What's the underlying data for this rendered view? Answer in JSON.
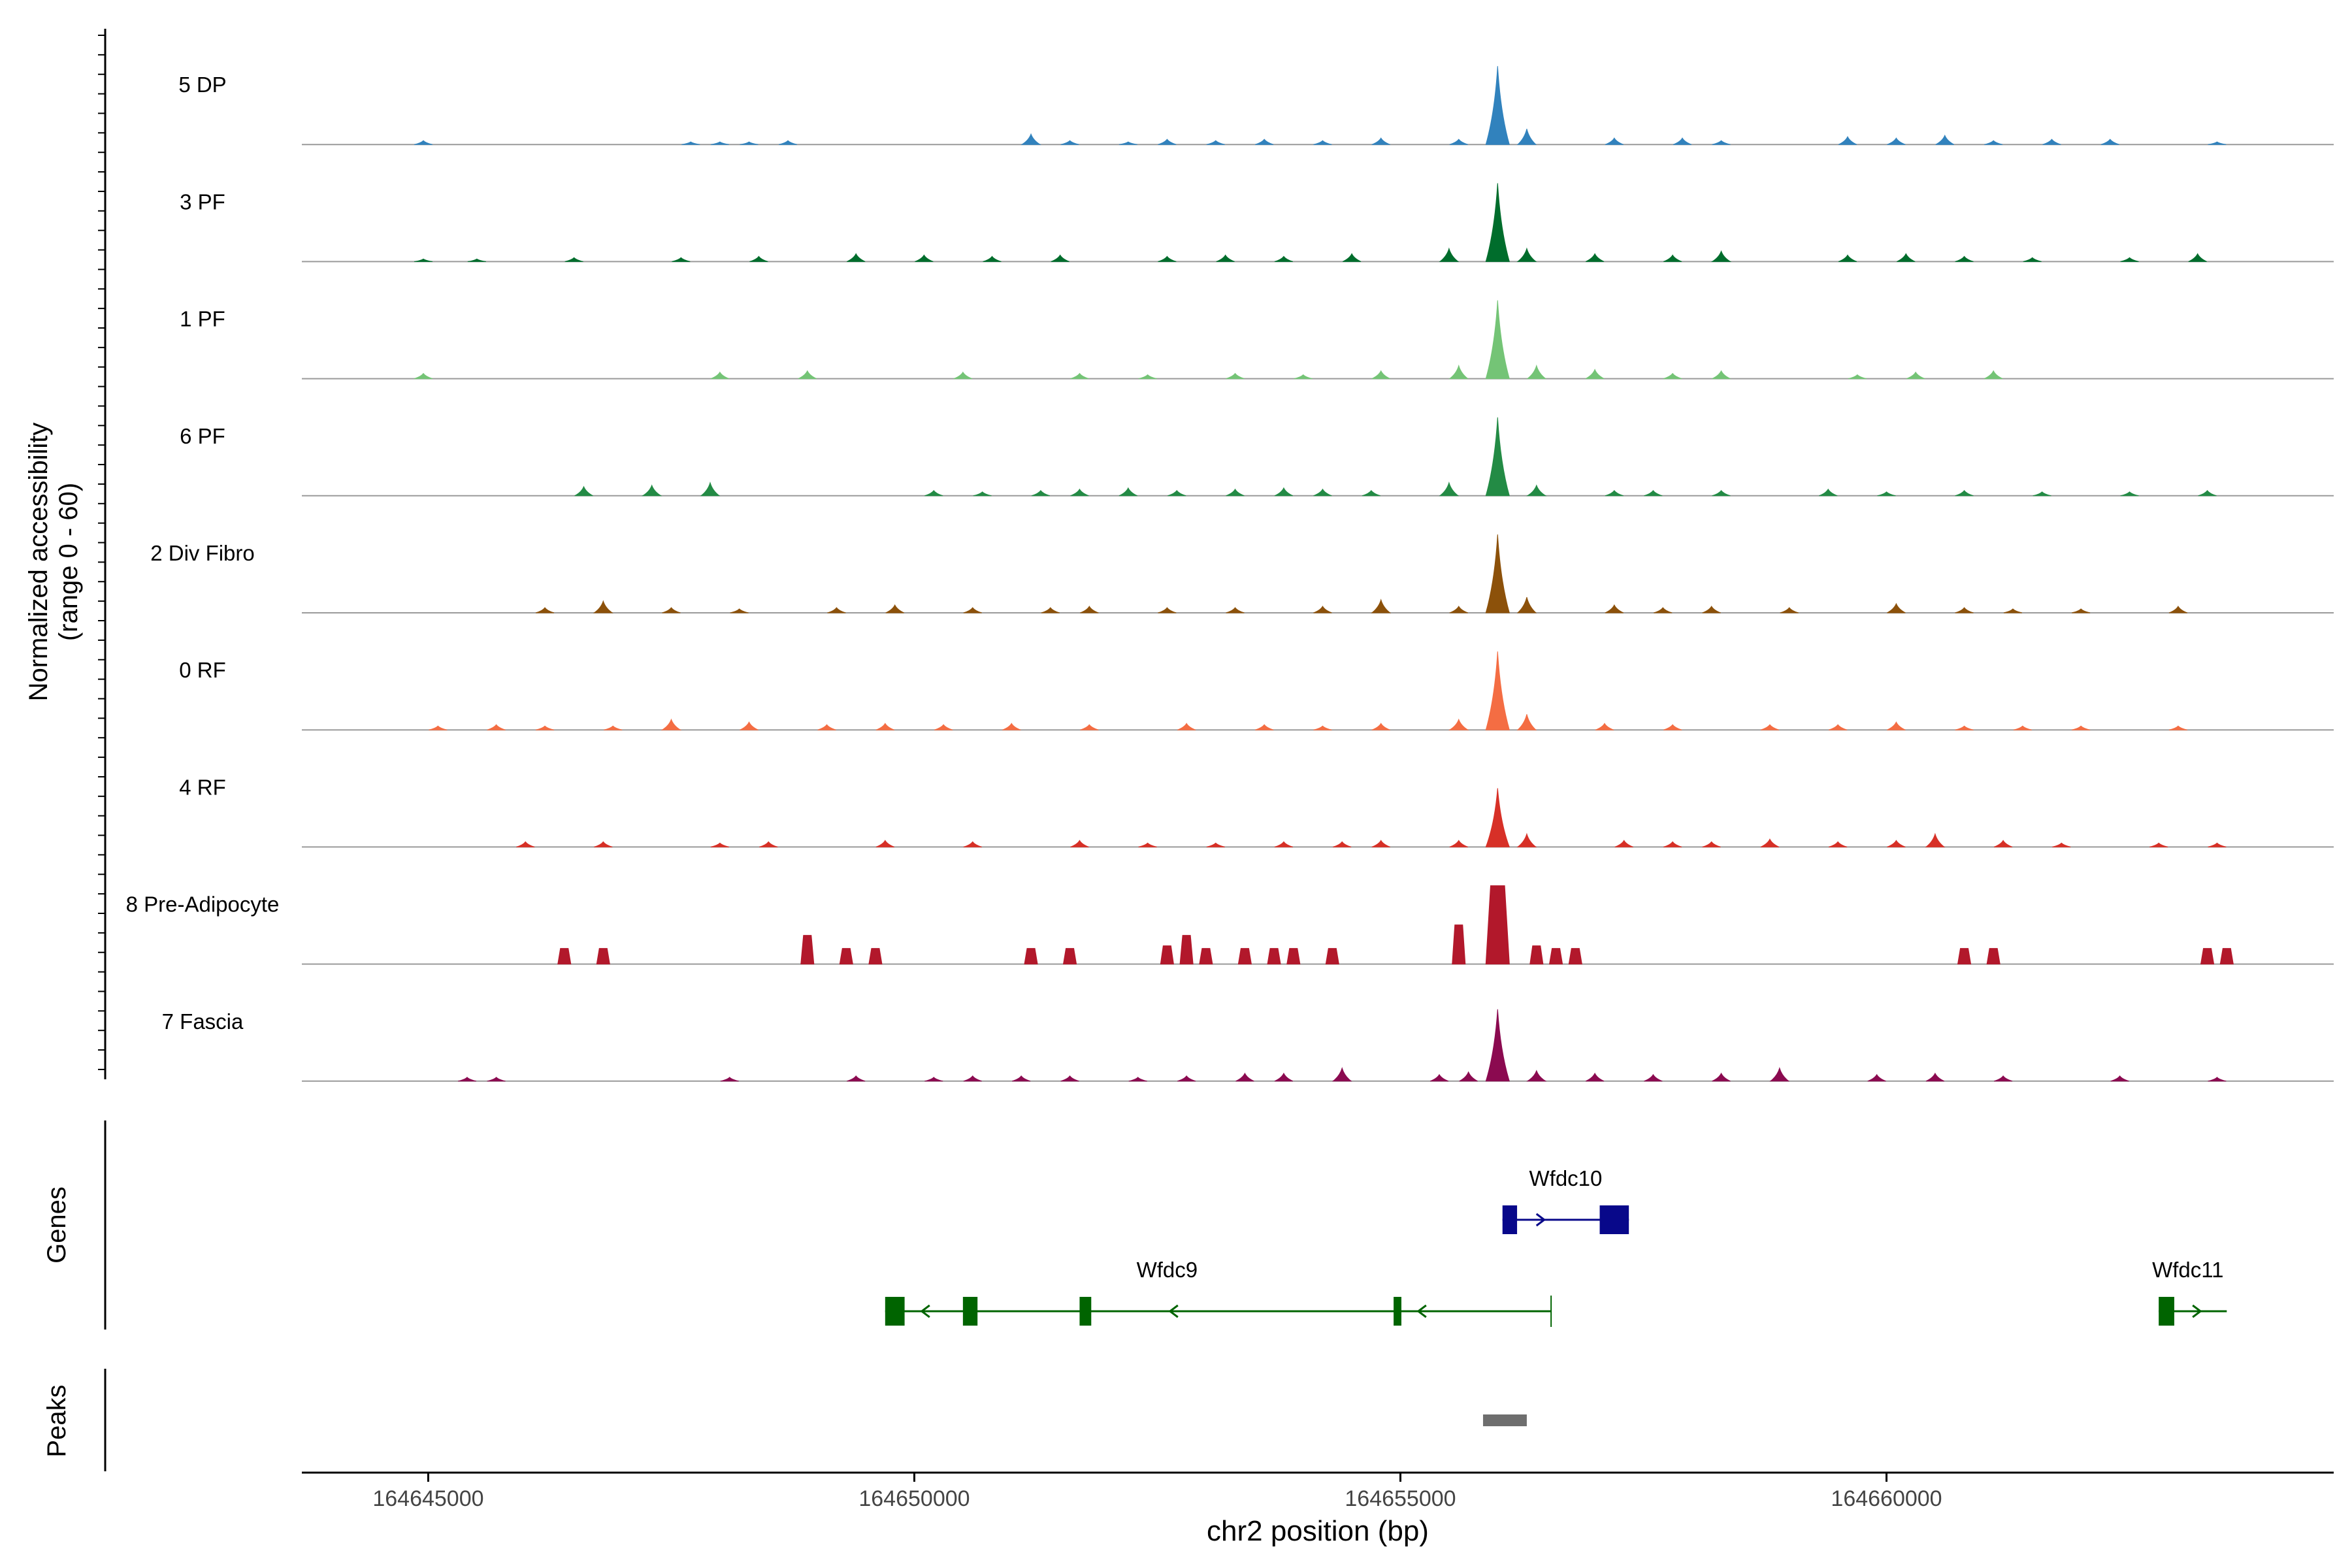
{
  "chart_data": {
    "type": "area",
    "title": "",
    "ylabel": [
      "Normalized accessibility",
      "(range 0 - 60)"
    ],
    "xlabel": "chr2 position (bp)",
    "xlim": [
      164643700,
      164664600
    ],
    "ylim": [
      0,
      60
    ],
    "xticks": [
      164645000,
      164650000,
      164655000,
      164660000
    ],
    "xtick_labels": [
      "164645000",
      "164650000",
      "164655000",
      "164660000"
    ],
    "series": [
      {
        "name": "5 DP",
        "color": "#3182BD",
        "peaks": [
          [
            164644950,
            3
          ],
          [
            164647700,
            2
          ],
          [
            164648000,
            2
          ],
          [
            164648300,
            2
          ],
          [
            164648700,
            3
          ],
          [
            164651200,
            8
          ],
          [
            164651600,
            3
          ],
          [
            164652200,
            2
          ],
          [
            164652600,
            4
          ],
          [
            164653100,
            3
          ],
          [
            164653600,
            4
          ],
          [
            164654200,
            3
          ],
          [
            164654800,
            5
          ],
          [
            164655600,
            4
          ],
          [
            164656000,
            60
          ],
          [
            164656300,
            12
          ],
          [
            164657200,
            5
          ],
          [
            164657900,
            5
          ],
          [
            164658300,
            3
          ],
          [
            164659600,
            6
          ],
          [
            164660100,
            5
          ],
          [
            164660600,
            7
          ],
          [
            164661100,
            3
          ],
          [
            164661700,
            4
          ],
          [
            164662300,
            4
          ],
          [
            164663400,
            2
          ]
        ]
      },
      {
        "name": "3 PF",
        "color": "#006D2C",
        "peaks": [
          [
            164644950,
            2
          ],
          [
            164645500,
            2
          ],
          [
            164646500,
            3
          ],
          [
            164647600,
            3
          ],
          [
            164648400,
            4
          ],
          [
            164649400,
            6
          ],
          [
            164650100,
            5
          ],
          [
            164650800,
            4
          ],
          [
            164651500,
            5
          ],
          [
            164652600,
            4
          ],
          [
            164653200,
            5
          ],
          [
            164653800,
            4
          ],
          [
            164654500,
            6
          ],
          [
            164655500,
            10
          ],
          [
            164656000,
            60
          ],
          [
            164656300,
            10
          ],
          [
            164657000,
            6
          ],
          [
            164657800,
            5
          ],
          [
            164658300,
            8
          ],
          [
            164659600,
            5
          ],
          [
            164660200,
            6
          ],
          [
            164660800,
            4
          ],
          [
            164661500,
            3
          ],
          [
            164662500,
            3
          ],
          [
            164663200,
            6
          ]
        ]
      },
      {
        "name": "1 PF",
        "color": "#74C476",
        "peaks": [
          [
            164644950,
            4
          ],
          [
            164648000,
            5
          ],
          [
            164648900,
            6
          ],
          [
            164650500,
            5
          ],
          [
            164651700,
            4
          ],
          [
            164652400,
            3
          ],
          [
            164653300,
            4
          ],
          [
            164654000,
            3
          ],
          [
            164654800,
            6
          ],
          [
            164655600,
            10
          ],
          [
            164656000,
            60
          ],
          [
            164656400,
            10
          ],
          [
            164657000,
            7
          ],
          [
            164657800,
            4
          ],
          [
            164658300,
            6
          ],
          [
            164659700,
            3
          ],
          [
            164660300,
            5
          ],
          [
            164661100,
            6
          ]
        ]
      },
      {
        "name": "6 PF",
        "color": "#238B45",
        "peaks": [
          [
            164646600,
            7
          ],
          [
            164647300,
            8
          ],
          [
            164647900,
            10
          ],
          [
            164650200,
            4
          ],
          [
            164650700,
            3
          ],
          [
            164651300,
            4
          ],
          [
            164651700,
            5
          ],
          [
            164652200,
            6
          ],
          [
            164652700,
            4
          ],
          [
            164653300,
            5
          ],
          [
            164653800,
            6
          ],
          [
            164654200,
            5
          ],
          [
            164654700,
            4
          ],
          [
            164655500,
            10
          ],
          [
            164656000,
            60
          ],
          [
            164656400,
            8
          ],
          [
            164657200,
            4
          ],
          [
            164657600,
            4
          ],
          [
            164658300,
            4
          ],
          [
            164659400,
            5
          ],
          [
            164660000,
            3
          ],
          [
            164660800,
            4
          ],
          [
            164661600,
            3
          ],
          [
            164662500,
            3
          ],
          [
            164663300,
            4
          ]
        ]
      },
      {
        "name": "2 Div Fibro",
        "color": "#8C510A",
        "peaks": [
          [
            164646200,
            4
          ],
          [
            164646800,
            9
          ],
          [
            164647500,
            4
          ],
          [
            164648200,
            3
          ],
          [
            164649200,
            4
          ],
          [
            164649800,
            6
          ],
          [
            164650600,
            4
          ],
          [
            164651400,
            4
          ],
          [
            164651800,
            5
          ],
          [
            164652600,
            4
          ],
          [
            164653300,
            4
          ],
          [
            164654200,
            5
          ],
          [
            164654800,
            10
          ],
          [
            164655600,
            5
          ],
          [
            164656000,
            60
          ],
          [
            164656300,
            12
          ],
          [
            164657200,
            6
          ],
          [
            164657700,
            4
          ],
          [
            164658200,
            5
          ],
          [
            164659000,
            4
          ],
          [
            164660100,
            7
          ],
          [
            164660800,
            4
          ],
          [
            164661300,
            3
          ],
          [
            164662000,
            3
          ],
          [
            164663000,
            5
          ]
        ]
      },
      {
        "name": "0 RF",
        "color": "#F46D43",
        "peaks": [
          [
            164645100,
            3
          ],
          [
            164645700,
            4
          ],
          [
            164646200,
            3
          ],
          [
            164646900,
            3
          ],
          [
            164647500,
            8
          ],
          [
            164648300,
            6
          ],
          [
            164649100,
            4
          ],
          [
            164649700,
            5
          ],
          [
            164650300,
            4
          ],
          [
            164651000,
            5
          ],
          [
            164651800,
            4
          ],
          [
            164652800,
            5
          ],
          [
            164653600,
            4
          ],
          [
            164654200,
            3
          ],
          [
            164654800,
            5
          ],
          [
            164655600,
            8
          ],
          [
            164656000,
            60
          ],
          [
            164656300,
            12
          ],
          [
            164657100,
            5
          ],
          [
            164657800,
            4
          ],
          [
            164658800,
            4
          ],
          [
            164659500,
            4
          ],
          [
            164660100,
            6
          ],
          [
            164660800,
            3
          ],
          [
            164661400,
            3
          ],
          [
            164662000,
            3
          ],
          [
            164663000,
            3
          ]
        ]
      },
      {
        "name": "4 RF",
        "color": "#D73027",
        "peaks": [
          [
            164646000,
            4
          ],
          [
            164646800,
            4
          ],
          [
            164648000,
            3
          ],
          [
            164648500,
            4
          ],
          [
            164649700,
            5
          ],
          [
            164650600,
            4
          ],
          [
            164651700,
            5
          ],
          [
            164652400,
            3
          ],
          [
            164653100,
            3
          ],
          [
            164653800,
            4
          ],
          [
            164654400,
            4
          ],
          [
            164654800,
            5
          ],
          [
            164655600,
            5
          ],
          [
            164656000,
            45
          ],
          [
            164656300,
            10
          ],
          [
            164657300,
            5
          ],
          [
            164657800,
            4
          ],
          [
            164658200,
            4
          ],
          [
            164658800,
            6
          ],
          [
            164659500,
            4
          ],
          [
            164660100,
            5
          ],
          [
            164660500,
            10
          ],
          [
            164661200,
            5
          ],
          [
            164661800,
            3
          ],
          [
            164662800,
            3
          ],
          [
            164663400,
            3
          ]
        ]
      },
      {
        "name": "8 Pre-Adipocyte",
        "color": "#B2182B",
        "peaks": [
          [
            164646400,
            12
          ],
          [
            164646800,
            12
          ],
          [
            164648900,
            22
          ],
          [
            164649300,
            12
          ],
          [
            164649600,
            12
          ],
          [
            164651200,
            12
          ],
          [
            164651600,
            12
          ],
          [
            164652600,
            14
          ],
          [
            164652800,
            22
          ],
          [
            164653000,
            12
          ],
          [
            164653400,
            12
          ],
          [
            164653700,
            12
          ],
          [
            164653900,
            12
          ],
          [
            164654300,
            12
          ],
          [
            164655600,
            30
          ],
          [
            164656000,
            60
          ],
          [
            164656400,
            14
          ],
          [
            164656600,
            12
          ],
          [
            164656800,
            12
          ],
          [
            164660800,
            12
          ],
          [
            164661100,
            12
          ],
          [
            164663300,
            12
          ],
          [
            164663500,
            12
          ]
        ]
      },
      {
        "name": "7 Fascia",
        "color": "#8B0A50",
        "peaks": [
          [
            164645400,
            3
          ],
          [
            164645700,
            3
          ],
          [
            164648100,
            3
          ],
          [
            164649400,
            4
          ],
          [
            164650200,
            3
          ],
          [
            164650600,
            4
          ],
          [
            164651100,
            4
          ],
          [
            164651600,
            4
          ],
          [
            164652300,
            3
          ],
          [
            164652800,
            4
          ],
          [
            164653400,
            6
          ],
          [
            164653800,
            6
          ],
          [
            164654400,
            10
          ],
          [
            164655400,
            5
          ],
          [
            164655700,
            7
          ],
          [
            164656000,
            55
          ],
          [
            164656400,
            8
          ],
          [
            164657000,
            6
          ],
          [
            164657600,
            5
          ],
          [
            164658300,
            6
          ],
          [
            164658900,
            10
          ],
          [
            164659900,
            5
          ],
          [
            164660500,
            6
          ],
          [
            164661200,
            4
          ],
          [
            164662400,
            4
          ],
          [
            164663400,
            3
          ]
        ]
      }
    ],
    "genes": [
      {
        "name": "Wfdc10",
        "strand": "+",
        "color": "#08088A",
        "start": 164656050,
        "end": 164657350,
        "exons": [
          [
            164656050,
            164656200
          ],
          [
            164657050,
            164657350
          ]
        ]
      },
      {
        "name": "Wfdc9",
        "strand": "-",
        "color": "#006400",
        "start": 164649700,
        "end": 164656550,
        "exons": [
          [
            164649700,
            164649900
          ],
          [
            164650500,
            164650650
          ],
          [
            164651700,
            164651820
          ],
          [
            164654930,
            164655010
          ]
        ]
      },
      {
        "name": "Wfdc11",
        "strand": "+",
        "color": "#006400",
        "start": 164662800,
        "end": 164663500,
        "exons": [
          [
            164662800,
            164662960
          ]
        ]
      }
    ],
    "peaks_track": [
      [
        164655850,
        164656300
      ]
    ],
    "track_labels": {
      "genes": "Genes",
      "peaks": "Peaks"
    }
  }
}
